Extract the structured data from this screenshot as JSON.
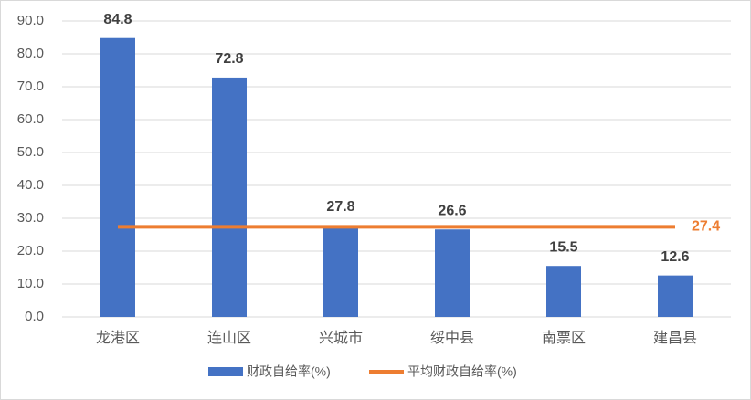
{
  "chart_data": {
    "type": "bar",
    "categories": [
      "龙港区",
      "连山区",
      "兴城市",
      "绥中县",
      "南票区",
      "建昌县"
    ],
    "series": [
      {
        "name": "财政自给率(%)",
        "type": "bar",
        "color": "#4472c4",
        "values": [
          84.8,
          72.8,
          27.8,
          26.6,
          15.5,
          12.6
        ]
      },
      {
        "name": "平均财政自给率(%)",
        "type": "line",
        "color": "#ed7d31",
        "values": [
          27.4,
          27.4,
          27.4,
          27.4,
          27.4,
          27.4
        ]
      }
    ],
    "ylim": [
      0,
      90
    ],
    "yticks": [
      {
        "value": 0,
        "label": "0.0"
      },
      {
        "value": 10,
        "label": "10.0"
      },
      {
        "value": 20,
        "label": "20.0"
      },
      {
        "value": 30,
        "label": "30.0"
      },
      {
        "value": 40,
        "label": "40.0"
      },
      {
        "value": 50,
        "label": "50.0"
      },
      {
        "value": 60,
        "label": "60.0"
      },
      {
        "value": 70,
        "label": "70.0"
      },
      {
        "value": 80,
        "label": "80.0"
      },
      {
        "value": 90,
        "label": "90.0"
      }
    ],
    "grid": true
  }
}
